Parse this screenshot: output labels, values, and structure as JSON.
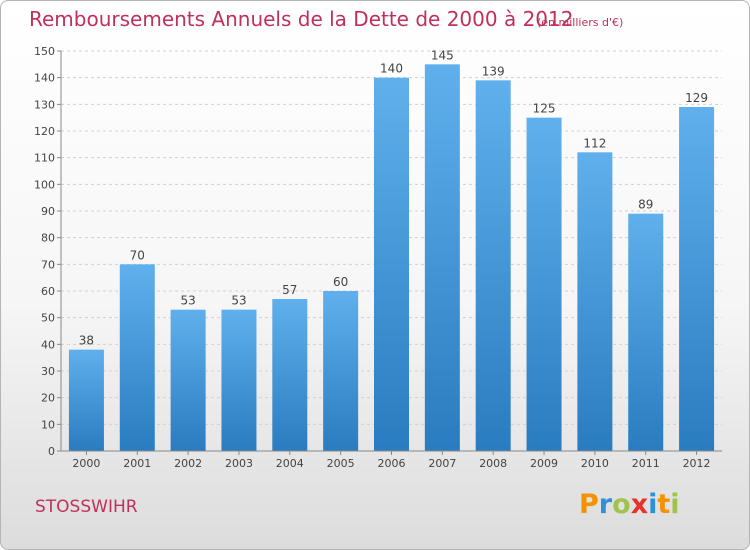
{
  "header": {
    "title": "Remboursements Annuels de la Dette de 2000 à 2012",
    "unit": "(en milliers d'€)"
  },
  "footer": {
    "town": "STOSSWIHR",
    "logo": {
      "letters": [
        "P",
        "r",
        "o",
        "x",
        "i",
        "t",
        "i"
      ],
      "colors": [
        "#f39200",
        "#2f8fd8",
        "#9fc34b",
        "#e6332a",
        "#2f8fd8",
        "#f39200",
        "#9fc34b"
      ]
    }
  },
  "colors": {
    "bar_light": "#5fb0ec",
    "bar_dark": "#2a7cc0",
    "title": "#c0305a"
  },
  "chart_data": {
    "type": "bar",
    "title": "Remboursements Annuels de la Dette de 2000 à 2012",
    "categories": [
      "2000",
      "2001",
      "2002",
      "2003",
      "2004",
      "2005",
      "2006",
      "2007",
      "2008",
      "2009",
      "2010",
      "2011",
      "2012"
    ],
    "values": [
      38,
      70,
      53,
      53,
      57,
      60,
      140,
      145,
      139,
      125,
      112,
      89,
      129
    ],
    "ylim": [
      0,
      150
    ],
    "yticks": [
      0,
      10,
      20,
      30,
      40,
      50,
      60,
      70,
      80,
      90,
      100,
      110,
      120,
      130,
      140,
      150
    ],
    "grid": true
  }
}
